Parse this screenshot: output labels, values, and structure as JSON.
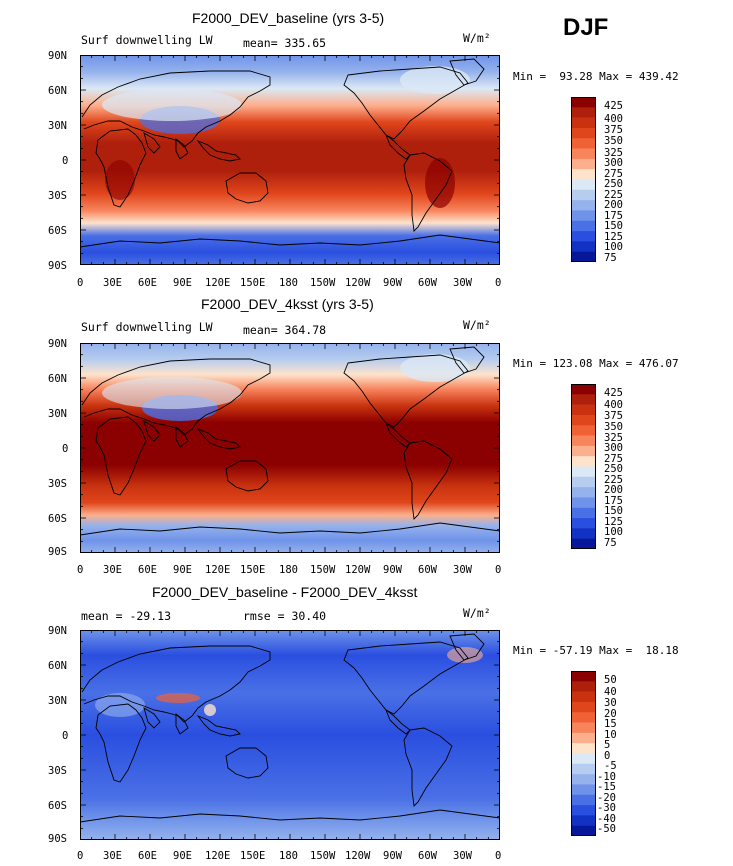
{
  "season": "DJF",
  "units": "W/m²",
  "x_tick_labels": [
    "0",
    "30E",
    "60E",
    "90E",
    "120E",
    "150E",
    "180",
    "150W",
    "120W",
    "90W",
    "60W",
    "30W",
    "0"
  ],
  "y_tick_labels": [
    "90N",
    "60N",
    "30N",
    "0",
    "30S",
    "60S",
    "90S"
  ],
  "panels": [
    {
      "title": "F2000_DEV_baseline (yrs 3-5)",
      "left_label": "Surf downwelling LW",
      "center_label": "mean= 335.65",
      "minmax": "Min =  93.28 Max = 439.42",
      "colorbar_levels": [
        "425",
        "400",
        "375",
        "350",
        "325",
        "300",
        "275",
        "250",
        "225",
        "200",
        "175",
        "150",
        "125",
        "100",
        "75"
      ],
      "colorbar_colors": [
        "#8b0000",
        "#ae1f0c",
        "#c8320f",
        "#e0461c",
        "#f06236",
        "#f8845c",
        "#fcaf8c",
        "#fde3cc",
        "#dbe8f5",
        "#b7cdef",
        "#95b2ec",
        "#6f93ea",
        "#4a70e6",
        "#2a4fe0",
        "#1232c4",
        "#06179a"
      ]
    },
    {
      "title": "F2000_DEV_4ksst (yrs 3-5)",
      "left_label": "Surf downwelling LW",
      "center_label": "mean= 364.78",
      "minmax": "Min = 123.08 Max = 476.07",
      "colorbar_levels": [
        "425",
        "400",
        "375",
        "350",
        "325",
        "300",
        "275",
        "250",
        "225",
        "200",
        "175",
        "150",
        "125",
        "100",
        "75"
      ],
      "colorbar_colors": [
        "#8b0000",
        "#ae1f0c",
        "#c8320f",
        "#e0461c",
        "#f06236",
        "#f8845c",
        "#fcaf8c",
        "#fde3cc",
        "#dbe8f5",
        "#b7cdef",
        "#95b2ec",
        "#6f93ea",
        "#4a70e6",
        "#2a4fe0",
        "#1232c4",
        "#06179a"
      ]
    },
    {
      "title": "F2000_DEV_baseline - F2000_DEV_4ksst",
      "left_label": "mean = -29.13",
      "center_label": "rmse =  30.40",
      "minmax": "Min = -57.19 Max =  18.18",
      "colorbar_levels": [
        "50",
        "40",
        "30",
        "20",
        "15",
        "10",
        "5",
        "0",
        "-5",
        "-10",
        "-15",
        "-20",
        "-30",
        "-40",
        "-50"
      ],
      "colorbar_colors": [
        "#8b0000",
        "#ae1f0c",
        "#c8320f",
        "#e0461c",
        "#f06236",
        "#f8845c",
        "#fcaf8c",
        "#fde3cc",
        "#dbe8f5",
        "#b7cdef",
        "#95b2ec",
        "#6f93ea",
        "#4a70e6",
        "#2a4fe0",
        "#1232c4",
        "#06179a"
      ]
    }
  ]
}
